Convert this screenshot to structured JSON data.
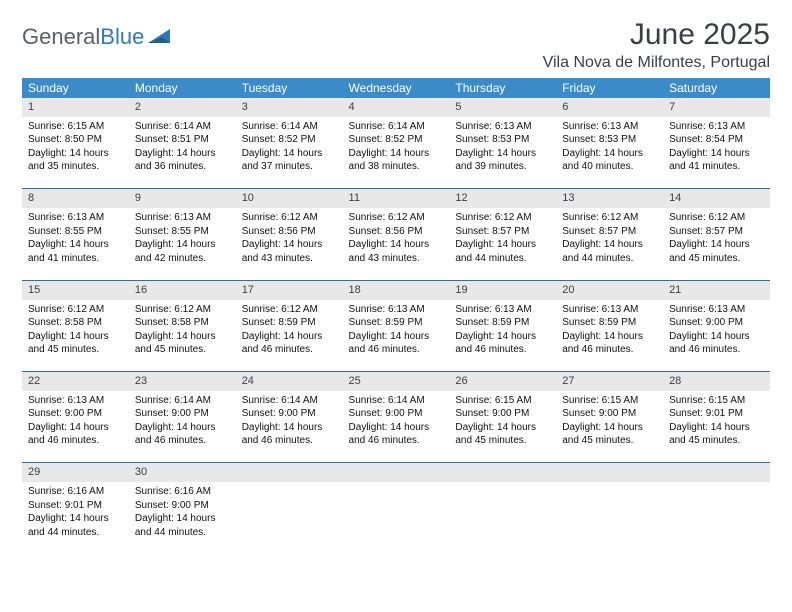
{
  "brand": {
    "part1": "General",
    "part2": "Blue"
  },
  "header": {
    "title": "June 2025",
    "location": "Vila Nova de Milfontes, Portugal"
  },
  "colors": {
    "header_bg": "#3b8bc8",
    "header_text": "#ffffff",
    "daynum_bg": "#e8e8e8",
    "border": "#2f6da3",
    "title_color": "#3b3f44",
    "brand_gray": "#5a6068",
    "brand_blue": "#2f79b9"
  },
  "weekdays": [
    "Sunday",
    "Monday",
    "Tuesday",
    "Wednesday",
    "Thursday",
    "Friday",
    "Saturday"
  ],
  "weeks": [
    [
      {
        "n": "1",
        "sr": "Sunrise: 6:15 AM",
        "ss": "Sunset: 8:50 PM",
        "d1": "Daylight: 14 hours",
        "d2": "and 35 minutes."
      },
      {
        "n": "2",
        "sr": "Sunrise: 6:14 AM",
        "ss": "Sunset: 8:51 PM",
        "d1": "Daylight: 14 hours",
        "d2": "and 36 minutes."
      },
      {
        "n": "3",
        "sr": "Sunrise: 6:14 AM",
        "ss": "Sunset: 8:52 PM",
        "d1": "Daylight: 14 hours",
        "d2": "and 37 minutes."
      },
      {
        "n": "4",
        "sr": "Sunrise: 6:14 AM",
        "ss": "Sunset: 8:52 PM",
        "d1": "Daylight: 14 hours",
        "d2": "and 38 minutes."
      },
      {
        "n": "5",
        "sr": "Sunrise: 6:13 AM",
        "ss": "Sunset: 8:53 PM",
        "d1": "Daylight: 14 hours",
        "d2": "and 39 minutes."
      },
      {
        "n": "6",
        "sr": "Sunrise: 6:13 AM",
        "ss": "Sunset: 8:53 PM",
        "d1": "Daylight: 14 hours",
        "d2": "and 40 minutes."
      },
      {
        "n": "7",
        "sr": "Sunrise: 6:13 AM",
        "ss": "Sunset: 8:54 PM",
        "d1": "Daylight: 14 hours",
        "d2": "and 41 minutes."
      }
    ],
    [
      {
        "n": "8",
        "sr": "Sunrise: 6:13 AM",
        "ss": "Sunset: 8:55 PM",
        "d1": "Daylight: 14 hours",
        "d2": "and 41 minutes."
      },
      {
        "n": "9",
        "sr": "Sunrise: 6:13 AM",
        "ss": "Sunset: 8:55 PM",
        "d1": "Daylight: 14 hours",
        "d2": "and 42 minutes."
      },
      {
        "n": "10",
        "sr": "Sunrise: 6:12 AM",
        "ss": "Sunset: 8:56 PM",
        "d1": "Daylight: 14 hours",
        "d2": "and 43 minutes."
      },
      {
        "n": "11",
        "sr": "Sunrise: 6:12 AM",
        "ss": "Sunset: 8:56 PM",
        "d1": "Daylight: 14 hours",
        "d2": "and 43 minutes."
      },
      {
        "n": "12",
        "sr": "Sunrise: 6:12 AM",
        "ss": "Sunset: 8:57 PM",
        "d1": "Daylight: 14 hours",
        "d2": "and 44 minutes."
      },
      {
        "n": "13",
        "sr": "Sunrise: 6:12 AM",
        "ss": "Sunset: 8:57 PM",
        "d1": "Daylight: 14 hours",
        "d2": "and 44 minutes."
      },
      {
        "n": "14",
        "sr": "Sunrise: 6:12 AM",
        "ss": "Sunset: 8:57 PM",
        "d1": "Daylight: 14 hours",
        "d2": "and 45 minutes."
      }
    ],
    [
      {
        "n": "15",
        "sr": "Sunrise: 6:12 AM",
        "ss": "Sunset: 8:58 PM",
        "d1": "Daylight: 14 hours",
        "d2": "and 45 minutes."
      },
      {
        "n": "16",
        "sr": "Sunrise: 6:12 AM",
        "ss": "Sunset: 8:58 PM",
        "d1": "Daylight: 14 hours",
        "d2": "and 45 minutes."
      },
      {
        "n": "17",
        "sr": "Sunrise: 6:12 AM",
        "ss": "Sunset: 8:59 PM",
        "d1": "Daylight: 14 hours",
        "d2": "and 46 minutes."
      },
      {
        "n": "18",
        "sr": "Sunrise: 6:13 AM",
        "ss": "Sunset: 8:59 PM",
        "d1": "Daylight: 14 hours",
        "d2": "and 46 minutes."
      },
      {
        "n": "19",
        "sr": "Sunrise: 6:13 AM",
        "ss": "Sunset: 8:59 PM",
        "d1": "Daylight: 14 hours",
        "d2": "and 46 minutes."
      },
      {
        "n": "20",
        "sr": "Sunrise: 6:13 AM",
        "ss": "Sunset: 8:59 PM",
        "d1": "Daylight: 14 hours",
        "d2": "and 46 minutes."
      },
      {
        "n": "21",
        "sr": "Sunrise: 6:13 AM",
        "ss": "Sunset: 9:00 PM",
        "d1": "Daylight: 14 hours",
        "d2": "and 46 minutes."
      }
    ],
    [
      {
        "n": "22",
        "sr": "Sunrise: 6:13 AM",
        "ss": "Sunset: 9:00 PM",
        "d1": "Daylight: 14 hours",
        "d2": "and 46 minutes."
      },
      {
        "n": "23",
        "sr": "Sunrise: 6:14 AM",
        "ss": "Sunset: 9:00 PM",
        "d1": "Daylight: 14 hours",
        "d2": "and 46 minutes."
      },
      {
        "n": "24",
        "sr": "Sunrise: 6:14 AM",
        "ss": "Sunset: 9:00 PM",
        "d1": "Daylight: 14 hours",
        "d2": "and 46 minutes."
      },
      {
        "n": "25",
        "sr": "Sunrise: 6:14 AM",
        "ss": "Sunset: 9:00 PM",
        "d1": "Daylight: 14 hours",
        "d2": "and 46 minutes."
      },
      {
        "n": "26",
        "sr": "Sunrise: 6:15 AM",
        "ss": "Sunset: 9:00 PM",
        "d1": "Daylight: 14 hours",
        "d2": "and 45 minutes."
      },
      {
        "n": "27",
        "sr": "Sunrise: 6:15 AM",
        "ss": "Sunset: 9:00 PM",
        "d1": "Daylight: 14 hours",
        "d2": "and 45 minutes."
      },
      {
        "n": "28",
        "sr": "Sunrise: 6:15 AM",
        "ss": "Sunset: 9:01 PM",
        "d1": "Daylight: 14 hours",
        "d2": "and 45 minutes."
      }
    ],
    [
      {
        "n": "29",
        "sr": "Sunrise: 6:16 AM",
        "ss": "Sunset: 9:01 PM",
        "d1": "Daylight: 14 hours",
        "d2": "and 44 minutes."
      },
      {
        "n": "30",
        "sr": "Sunrise: 6:16 AM",
        "ss": "Sunset: 9:00 PM",
        "d1": "Daylight: 14 hours",
        "d2": "and 44 minutes."
      },
      null,
      null,
      null,
      null,
      null
    ]
  ]
}
